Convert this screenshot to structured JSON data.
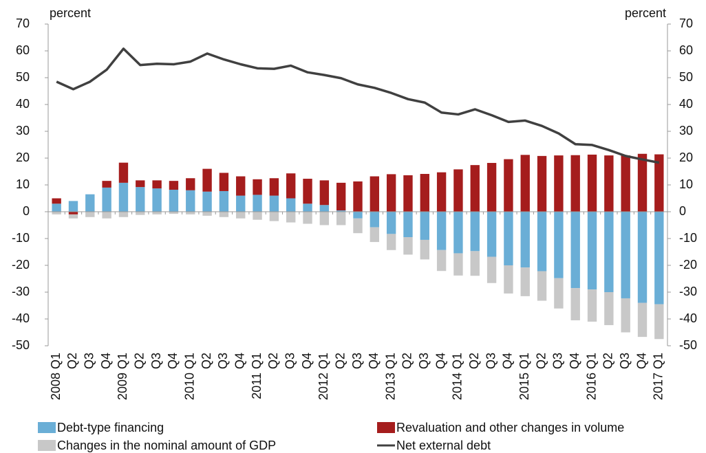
{
  "chart_data": {
    "type": "bar",
    "y_label": "percent",
    "y2_label": "percent",
    "categories": [
      "2008 Q1",
      "Q2",
      "Q3",
      "Q4",
      "2009 Q1",
      "Q2",
      "Q3",
      "Q4",
      "2010 Q1",
      "Q2",
      "Q3",
      "Q4",
      "2011 Q1",
      "Q2",
      "Q3",
      "Q4",
      "2012 Q1",
      "Q2",
      "Q3",
      "Q4",
      "2013 Q1",
      "Q2",
      "Q3",
      "Q4",
      "2014 Q1",
      "Q2",
      "Q3",
      "Q4",
      "2015 Q1",
      "Q2",
      "Q3",
      "Q4",
      "2016 Q1",
      "Q2",
      "Q3",
      "Q4",
      "2017 Q1"
    ],
    "series": [
      {
        "name": "Debt-type financing",
        "color": "#6aaed6",
        "type": "bar",
        "values": [
          3,
          4,
          6.5,
          9,
          10.8,
          9.2,
          8.7,
          8.2,
          8,
          7.5,
          7.7,
          6,
          6.3,
          6,
          5,
          3,
          2.5,
          0.5,
          -2.5,
          -5.8,
          -8.3,
          -9.5,
          -10.5,
          -14.3,
          -15.5,
          -14.7,
          -16.8,
          -20,
          -20.8,
          -22.2,
          -24.8,
          -28.5,
          -29,
          -30,
          -32.3,
          -34,
          -34.5
        ]
      },
      {
        "name": "Revaluation and other changes in volume",
        "color": "#a51d1d",
        "type": "bar",
        "values": [
          2,
          -1,
          0,
          2.5,
          7.5,
          2.5,
          3,
          3.3,
          4.5,
          8.5,
          6.8,
          7.2,
          5.8,
          6.5,
          9.3,
          9.3,
          9.2,
          10.3,
          11.3,
          13.2,
          14,
          13.6,
          14.1,
          14.7,
          15.8,
          17.4,
          18.2,
          19.6,
          21.2,
          20.8,
          21,
          21.1,
          21.3,
          21,
          21,
          21.6,
          21.4
        ]
      },
      {
        "name": "Changes in the nominal amount of GDP",
        "color": "#c8c8c8",
        "type": "bar",
        "values": [
          -1,
          -1.5,
          -2,
          -2.5,
          -2,
          -1.2,
          -1,
          -0.8,
          -1,
          -1.5,
          -2,
          -2.5,
          -3,
          -3.5,
          -4,
          -4.5,
          -5,
          -5,
          -5.5,
          -5.5,
          -6,
          -6.5,
          -7.3,
          -7.8,
          -8.3,
          -9.2,
          -9.8,
          -10.5,
          -10.7,
          -11,
          -11.3,
          -12,
          -12,
          -12.3,
          -12.7,
          -12.7,
          -13
        ]
      },
      {
        "name": "Net external debt",
        "color": "#404040",
        "type": "line",
        "values": [
          48.5,
          45.7,
          48.5,
          53,
          60.8,
          54.7,
          55.2,
          55,
          56,
          59,
          56.8,
          55,
          53.5,
          53.3,
          54.5,
          52,
          51,
          49.8,
          47.5,
          46.2,
          44.3,
          42,
          40.7,
          37,
          36.3,
          38.2,
          36,
          33.5,
          34,
          32,
          29.2,
          25.2,
          24.9,
          23,
          20.8,
          19.5,
          18.3
        ]
      }
    ],
    "ylim": [
      -50,
      70
    ],
    "yticks": [
      -50,
      -40,
      -30,
      -20,
      -10,
      0,
      10,
      20,
      30,
      40,
      50,
      60,
      70
    ],
    "y2lim": [
      -50,
      70
    ],
    "y2ticks": [
      -50,
      -40,
      -30,
      -20,
      -10,
      0,
      10,
      20,
      30,
      40,
      50,
      60,
      70
    ],
    "stacked": true
  }
}
